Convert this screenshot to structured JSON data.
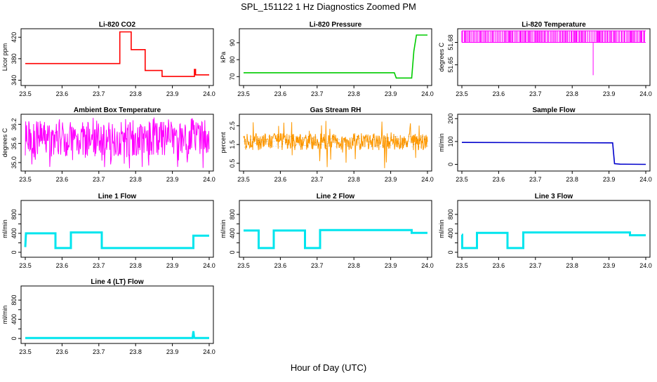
{
  "page": {
    "title": "SPL_151122  1 Hz Diagnostics Zoomed PM",
    "x_axis_title": "Hour of Day (UTC)"
  },
  "chart_data": [
    {
      "type": "line",
      "title": "Li-820 CO2",
      "ylabel": "Licor ppm",
      "color": "#ff0000",
      "xlim": [
        23.5,
        24.0
      ],
      "ylim": [
        334,
        432
      ],
      "yticks": [
        340,
        380,
        420
      ],
      "ytick_labels": [
        "340",
        "380",
        "420"
      ],
      "xticks": [
        23.5,
        23.6,
        23.7,
        23.8,
        23.9,
        24.0
      ],
      "xtick_labels": [
        "23.5",
        "23.6",
        "23.7",
        "23.8",
        "23.9",
        "24.0"
      ],
      "series": [
        {
          "x": [
            23.5,
            23.757,
            23.757,
            23.788,
            23.788,
            23.826,
            23.826,
            23.872,
            23.872,
            23.915,
            23.915,
            23.96,
            23.96,
            23.963,
            23.963,
            24.0
          ],
          "y": [
            371,
            371,
            430,
            430,
            397,
            397,
            358,
            358,
            347,
            347,
            347,
            347,
            360,
            360,
            350,
            350
          ]
        }
      ]
    },
    {
      "type": "line",
      "title": "Li-820 Pressure",
      "ylabel": "kPa",
      "color": "#00cc00",
      "xlim": [
        23.5,
        24.0
      ],
      "ylim": [
        66,
        97
      ],
      "yticks": [
        70,
        80,
        90
      ],
      "ytick_labels": [
        "70",
        "80",
        "90"
      ],
      "xticks": [
        23.5,
        23.6,
        23.7,
        23.8,
        23.9,
        24.0
      ],
      "xtick_labels": [
        "23.5",
        "23.6",
        "23.7",
        "23.8",
        "23.9",
        "24.0"
      ],
      "series": [
        {
          "x": [
            23.5,
            23.91,
            23.915,
            23.957,
            23.963,
            23.97,
            24.0
          ],
          "y": [
            72.3,
            72.3,
            69.2,
            69.2,
            85,
            94.5,
            94.5
          ]
        }
      ]
    },
    {
      "type": "line",
      "title": "Li-820 Temperature",
      "ylabel": "degrees C",
      "color": "#ff00ff",
      "xlim": [
        23.5,
        24.0
      ],
      "ylim": [
        51.625,
        51.6955
      ],
      "yticks": [
        51.65,
        51.68
      ],
      "ytick_labels": [
        "51.65",
        "51.68"
      ],
      "xticks": [
        23.5,
        23.6,
        23.7,
        23.8,
        23.9,
        24.0
      ],
      "xtick_labels": [
        "23.5",
        "23.6",
        "23.7",
        "23.8",
        "23.9",
        "24.0"
      ],
      "levels": [
        51.68,
        51.6955
      ],
      "dip": {
        "x": 23.857,
        "y": 51.636
      },
      "series": [
        {
          "x": [
            23.5,
            24.0
          ],
          "y": [
            51.68,
            51.6955
          ]
        }
      ]
    },
    {
      "type": "line",
      "title": "Ambient Box Temperature",
      "ylabel": "degrees C",
      "color": "#ff00ff",
      "xlim": [
        23.5,
        24.0
      ],
      "ylim": [
        34.8,
        36.45
      ],
      "yticks": [
        35.0,
        35.6,
        36.2
      ],
      "ytick_labels": [
        "35.0",
        "35.6",
        "36.2"
      ],
      "xticks": [
        23.5,
        23.6,
        23.7,
        23.8,
        23.9,
        24.0
      ],
      "xtick_labels": [
        "23.5",
        "23.6",
        "23.7",
        "23.8",
        "23.9",
        "24.0"
      ],
      "band": [
        35.2,
        36.3
      ],
      "series": [
        {
          "x": [
            23.5,
            24.0
          ],
          "y": [
            35.55,
            35.55
          ]
        }
      ]
    },
    {
      "type": "line",
      "title": "Gas Stream RH",
      "ylabel": "percent",
      "color": "#ff9900",
      "accent": "#000000",
      "xlim": [
        23.5,
        24.0
      ],
      "ylim": [
        0.2,
        3.0
      ],
      "yticks": [
        0.5,
        1.5,
        2.5
      ],
      "ytick_labels": [
        "0.5",
        "1.5",
        "2.5"
      ],
      "xticks": [
        23.5,
        23.6,
        23.7,
        23.8,
        23.9,
        24.0
      ],
      "xtick_labels": [
        "23.5",
        "23.6",
        "23.7",
        "23.8",
        "23.9",
        "24.0"
      ],
      "band": [
        1.2,
        2.1
      ],
      "series": [
        {
          "x": [
            23.5,
            24.0
          ],
          "y": [
            1.65,
            1.65
          ]
        }
      ]
    },
    {
      "type": "line",
      "title": "Sample Flow",
      "ylabel": "ml/min",
      "color": "#0000cc",
      "xlim": [
        23.5,
        24.0
      ],
      "ylim": [
        -20,
        210
      ],
      "yticks": [
        0,
        100,
        200
      ],
      "ytick_labels": [
        "0",
        "100",
        "200"
      ],
      "xticks": [
        23.5,
        23.6,
        23.7,
        23.8,
        23.9,
        24.0
      ],
      "xtick_labels": [
        "23.5",
        "23.6",
        "23.7",
        "23.8",
        "23.9",
        "24.0"
      ],
      "series": [
        {
          "x": [
            23.5,
            23.91,
            23.915,
            23.93,
            24.0
          ],
          "y": [
            96,
            94,
            3,
            1,
            0
          ]
        }
      ]
    },
    {
      "type": "line",
      "title": "Line 1 Flow",
      "ylabel": "ml/min",
      "color": "#00e5ee",
      "xlim": [
        23.5,
        24.0
      ],
      "ylim": [
        -60,
        1050
      ],
      "yticks": [
        0,
        200,
        400,
        600,
        800
      ],
      "ytick_labels": [
        "0",
        "400",
        "800"
      ],
      "xticks": [
        23.5,
        23.6,
        23.7,
        23.8,
        23.9,
        24.0
      ],
      "xtick_labels": [
        "23.5",
        "23.6",
        "23.7",
        "23.8",
        "23.9",
        "24.0"
      ],
      "series": [
        {
          "x": [
            23.5,
            23.502,
            23.582,
            23.582,
            23.624,
            23.624,
            23.708,
            23.708,
            23.957,
            23.957,
            24.0
          ],
          "y": [
            110,
            400,
            400,
            90,
            90,
            420,
            420,
            90,
            90,
            350,
            350
          ]
        }
      ]
    },
    {
      "type": "line",
      "title": "Line 2 Flow",
      "ylabel": "ml/min",
      "color": "#00e5ee",
      "xlim": [
        23.5,
        24.0
      ],
      "ylim": [
        -60,
        1050
      ],
      "yticks": [
        0,
        200,
        400,
        600,
        800
      ],
      "ytick_labels": [
        "0",
        "400",
        "800"
      ],
      "xticks": [
        23.5,
        23.6,
        23.7,
        23.8,
        23.9,
        24.0
      ],
      "xtick_labels": [
        "23.5",
        "23.6",
        "23.7",
        "23.8",
        "23.9",
        "24.0"
      ],
      "series": [
        {
          "x": [
            23.5,
            23.541,
            23.541,
            23.582,
            23.582,
            23.667,
            23.667,
            23.708,
            23.708,
            23.957,
            23.957,
            24.0
          ],
          "y": [
            460,
            460,
            90,
            90,
            460,
            460,
            90,
            90,
            470,
            470,
            410,
            410
          ]
        }
      ]
    },
    {
      "type": "line",
      "title": "Line 3 Flow",
      "ylabel": "ml/min",
      "color": "#00e5ee",
      "xlim": [
        23.5,
        24.0
      ],
      "ylim": [
        -60,
        1050
      ],
      "yticks": [
        0,
        200,
        400,
        600,
        800
      ],
      "ytick_labels": [
        "0",
        "400",
        "800"
      ],
      "xticks": [
        23.5,
        23.6,
        23.7,
        23.8,
        23.9,
        24.0
      ],
      "xtick_labels": [
        "23.5",
        "23.6",
        "23.7",
        "23.8",
        "23.9",
        "24.0"
      ],
      "series": [
        {
          "x": [
            23.5,
            23.501,
            23.501,
            23.541,
            23.541,
            23.624,
            23.624,
            23.667,
            23.667,
            23.957,
            23.957,
            24.0
          ],
          "y": [
            370,
            370,
            90,
            90,
            410,
            410,
            90,
            90,
            420,
            420,
            360,
            360
          ]
        }
      ]
    },
    {
      "type": "line",
      "title": "Line 4 (LT) Flow",
      "ylabel": "ml/min",
      "color": "#00e5ee",
      "xlim": [
        23.5,
        24.0
      ],
      "ylim": [
        -60,
        1050
      ],
      "yticks": [
        0,
        200,
        400,
        600,
        800
      ],
      "ytick_labels": [
        "0",
        "400",
        "800"
      ],
      "xticks": [
        23.5,
        23.6,
        23.7,
        23.8,
        23.9,
        24.0
      ],
      "xtick_labels": [
        "23.5",
        "23.6",
        "23.7",
        "23.8",
        "23.9",
        "24.0"
      ],
      "series": [
        {
          "x": [
            23.5,
            23.955,
            23.957,
            23.959,
            23.961,
            24.0
          ],
          "y": [
            10,
            10,
            150,
            20,
            10,
            10
          ]
        }
      ]
    }
  ]
}
